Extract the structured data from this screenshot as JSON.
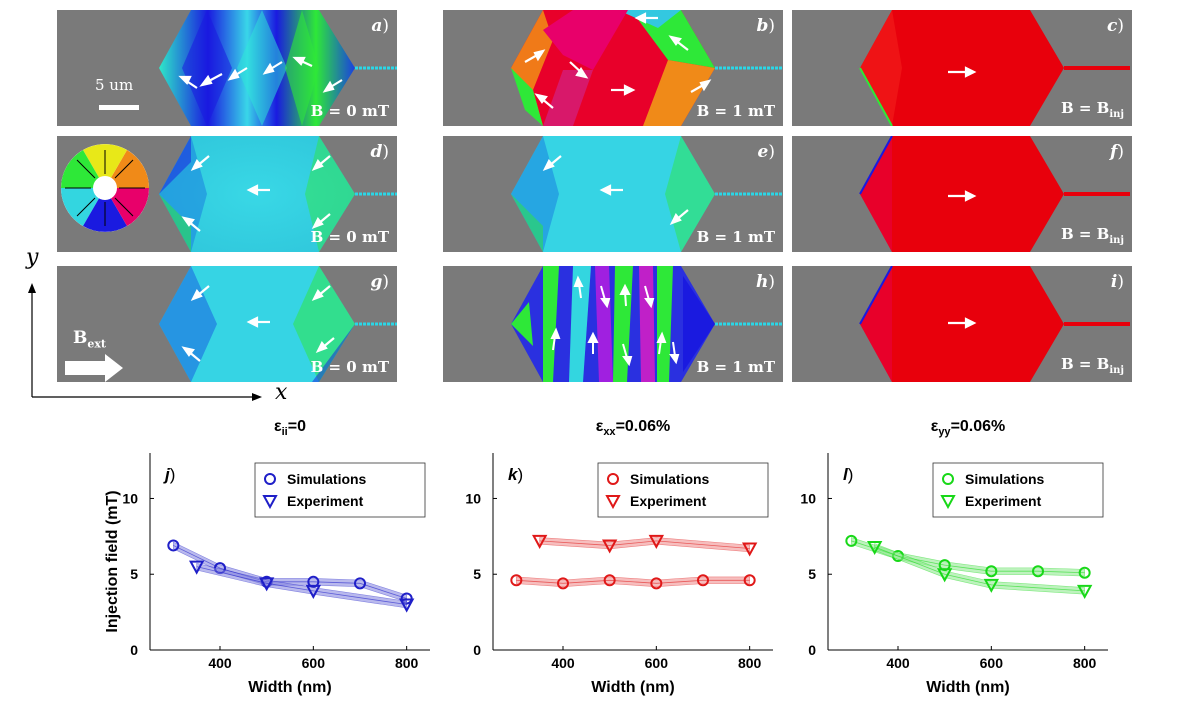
{
  "figure": {
    "panels": [
      {
        "id": "a",
        "label": "a",
        "field": "B = 0 mT"
      },
      {
        "id": "b",
        "label": "b",
        "field": "B = 1 mT"
      },
      {
        "id": "c",
        "label": "c",
        "field": "B = B",
        "field_sub": "inj"
      },
      {
        "id": "d",
        "label": "d",
        "field": "B = 0 mT"
      },
      {
        "id": "e",
        "label": "e",
        "field": "B = 1 mT"
      },
      {
        "id": "f",
        "label": "f",
        "field": "B = B",
        "field_sub": "inj"
      },
      {
        "id": "g",
        "label": "g",
        "field": "B = 0 mT"
      },
      {
        "id": "h",
        "label": "h",
        "field": "B = 1 mT"
      },
      {
        "id": "i",
        "label": "i",
        "field": "B = B",
        "field_sub": "inj"
      }
    ],
    "scale_bar": "5 um",
    "bext_label": "B",
    "bext_sub": "ext",
    "axis_x": "x",
    "axis_y": "y",
    "colors": {
      "background": "#7a7a7a",
      "cyan": "#33d6e0",
      "red": "#e8000c",
      "blue": "#1a1ae0",
      "green": "#2ee838",
      "wire": "#2ad6e6"
    }
  },
  "chart_data": [
    {
      "type": "line",
      "panel_label": "j",
      "title_sym": "ε",
      "title_sub": "ii",
      "title_rest": "=0",
      "xlabel": "Width (nm)",
      "ylabel": "Injection field (mT)",
      "xlim": [
        250,
        850
      ],
      "ylim": [
        0,
        13
      ],
      "xticks": [
        400,
        600,
        800
      ],
      "yticks": [
        0,
        5,
        10
      ],
      "color": "#1f1fc8",
      "fill": "#8080e0",
      "legend": [
        "Simulations",
        "Experiment"
      ],
      "series": [
        {
          "name": "Simulations",
          "marker": "circle",
          "x": [
            300,
            400,
            500,
            600,
            700,
            800
          ],
          "y": [
            6.9,
            5.4,
            4.5,
            4.5,
            4.4,
            3.4
          ]
        },
        {
          "name": "Experiment",
          "marker": "triangle",
          "x": [
            350,
            500,
            600,
            800
          ],
          "y": [
            5.5,
            4.4,
            3.9,
            3.0
          ]
        }
      ]
    },
    {
      "type": "line",
      "panel_label": "k",
      "title_sym": "ε",
      "title_sub": "xx",
      "title_rest": "=0.06%",
      "xlabel": "Width (nm)",
      "ylabel": "",
      "xlim": [
        250,
        850
      ],
      "ylim": [
        0,
        13
      ],
      "xticks": [
        400,
        600,
        800
      ],
      "yticks": [
        0,
        5,
        10
      ],
      "color": "#e01818",
      "fill": "#f08a8a",
      "legend": [
        "Simulations",
        "Experiment"
      ],
      "series": [
        {
          "name": "Simulations",
          "marker": "circle",
          "x": [
            300,
            400,
            500,
            600,
            700,
            800
          ],
          "y": [
            4.6,
            4.4,
            4.6,
            4.4,
            4.6,
            4.6
          ]
        },
        {
          "name": "Experiment",
          "marker": "triangle",
          "x": [
            350,
            500,
            600,
            800
          ],
          "y": [
            7.2,
            6.9,
            7.2,
            6.7
          ]
        }
      ]
    },
    {
      "type": "line",
      "panel_label": "l",
      "title_sym": "ε",
      "title_sub": "yy",
      "title_rest": "=0.06%",
      "xlabel": "Width (nm)",
      "ylabel": "",
      "xlim": [
        250,
        850
      ],
      "ylim": [
        0,
        13
      ],
      "xticks": [
        400,
        600,
        800
      ],
      "yticks": [
        0,
        5,
        10
      ],
      "color": "#18d818",
      "fill": "#8ae88a",
      "legend": [
        "Simulations",
        "Experiment"
      ],
      "series": [
        {
          "name": "Simulations",
          "marker": "circle",
          "x": [
            300,
            400,
            500,
            600,
            700,
            800
          ],
          "y": [
            7.2,
            6.2,
            5.6,
            5.2,
            5.2,
            5.1
          ]
        },
        {
          "name": "Experiment",
          "marker": "triangle",
          "x": [
            350,
            500,
            600,
            800
          ],
          "y": [
            6.8,
            5.0,
            4.3,
            3.9
          ]
        }
      ]
    }
  ]
}
